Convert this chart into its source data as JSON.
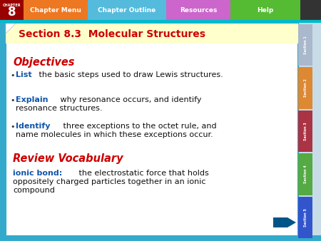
{
  "title": "Section 8.3  Molecular Structures",
  "title_color": "#cc0000",
  "objectives_label": "Objectives",
  "objectives_color": "#cc0000",
  "bullets": [
    {
      "bold": "List",
      "rest": " the basic steps used to draw Lewis structures."
    },
    {
      "bold": "Explain",
      "rest": " why resonance occurs, and identify\nresonance structures."
    },
    {
      "bold": "Identify",
      "rest": " three exceptions to the octet rule, and\nname molecules in which these exceptions occur."
    }
  ],
  "bullet_bold_color": "#1155aa",
  "bullet_text_color": "#111111",
  "review_label": "Review Vocabulary",
  "review_color": "#cc0000",
  "vocab_bold": "ionic bond:",
  "vocab_bold_color": "#1155aa",
  "vocab_rest": " the electrostatic force that holds\noppositely charged particles together in an ionic\ncompound",
  "vocab_text_color": "#111111",
  "chapter_menu_color": "#ee7722",
  "chapter_outline_color": "#55bbdd",
  "resources_color": "#cc66cc",
  "help_color": "#55bb33",
  "bg_color": "#ffffff",
  "outer_bg": "#c8dce8",
  "chapter_box_color": "#990000",
  "nav_bar_bg": "#444444",
  "top_cyan_line": "#00bbcc",
  "right_tab_colors": [
    "#aab8cc",
    "#dd8833",
    "#aa3344",
    "#55aa44",
    "#3355cc"
  ],
  "right_tab_labels": [
    "Section 1",
    "Section 2",
    "Section 3",
    "Section 4",
    "Section 5"
  ],
  "arrow_color": "#005588",
  "main_border_color": "#33aacc",
  "title_strip_color": "#ffffcc",
  "side_strip_color": "#33aacc"
}
